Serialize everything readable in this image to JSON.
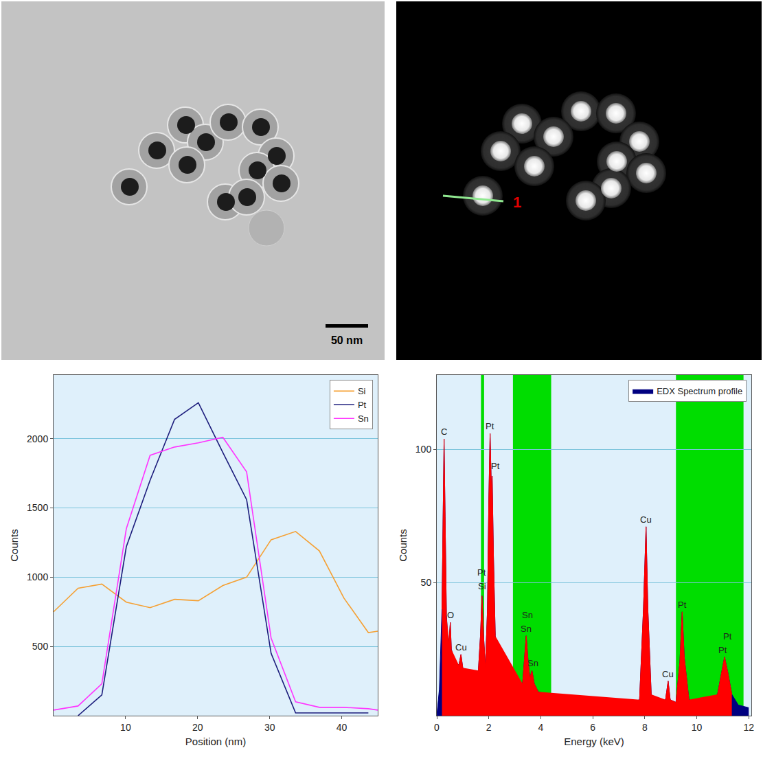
{
  "panels": [
    {
      "scale_bar": "50 nm"
    },
    {
      "line_label": "1"
    }
  ],
  "chart_data": [
    {
      "type": "line",
      "x_label": "Position (nm)",
      "y_label": "Counts",
      "x": [
        0,
        3.4,
        6.7,
        10.1,
        13.4,
        16.8,
        20.1,
        23.5,
        26.8,
        30.2,
        33.6,
        36.9,
        40.3,
        43.7,
        45
      ],
      "series": [
        {
          "name": "Si",
          "color": "#f5a033",
          "values": [
            750,
            920,
            950,
            820,
            780,
            840,
            830,
            940,
            1000,
            1270,
            1330,
            1190,
            850,
            600,
            610
          ]
        },
        {
          "name": "Pt",
          "color": "#1c1c7c",
          "values": [
            null,
            0,
            150,
            1220,
            1700,
            2140,
            2260,
            1900,
            1560,
            450,
            20,
            20,
            20,
            20,
            null
          ]
        },
        {
          "name": "Sn",
          "color": "#ff33ff",
          "values": [
            40,
            70,
            230,
            1350,
            1880,
            1940,
            1970,
            2010,
            1760,
            560,
            100,
            60,
            60,
            50,
            40
          ]
        }
      ],
      "xlim": [
        0,
        45
      ],
      "xticks": [
        10,
        20,
        30,
        40
      ],
      "ylim": [
        0,
        2460
      ],
      "yticks": [
        500,
        1000,
        1500,
        2000
      ],
      "grid": true,
      "legend": "upper right"
    },
    {
      "type": "area",
      "x_label": "Energy (keV)",
      "y_label": "Counts",
      "x": [
        0.0,
        0.1,
        0.2,
        0.25,
        0.28,
        0.32,
        0.37,
        0.42,
        0.47,
        0.52,
        0.56,
        0.65,
        0.75,
        0.85,
        0.93,
        1.0,
        1.1,
        1.2,
        1.3,
        1.4,
        1.5,
        1.6,
        1.68,
        1.74,
        1.8,
        1.87,
        1.95,
        2.0,
        2.05,
        2.1,
        2.13,
        2.18,
        2.25,
        2.35,
        2.5,
        2.7,
        2.9,
        3.1,
        3.3,
        3.4,
        3.44,
        3.5,
        3.58,
        3.66,
        3.75,
        3.9,
        4.2,
        4.5,
        5.0,
        5.5,
        6.0,
        6.5,
        7.0,
        7.5,
        7.8,
        7.95,
        8.05,
        8.12,
        8.25,
        8.5,
        8.8,
        8.9,
        8.98,
        9.2,
        9.35,
        9.44,
        9.52,
        9.7,
        10.0,
        10.4,
        10.8,
        10.95,
        11.07,
        11.2,
        11.35,
        11.6,
        12.0
      ],
      "series": [
        {
          "name": "EDX Spectrum profile",
          "color": "#000080",
          "values": [
            0,
            10,
            40,
            80,
            104,
            75,
            38,
            30,
            28,
            35,
            25,
            22,
            20,
            19,
            23,
            18,
            17,
            16,
            15,
            15,
            15,
            17,
            30,
            45,
            30,
            18,
            40,
            80,
            106,
            85,
            90,
            60,
            30,
            18,
            14,
            12,
            11,
            10,
            12,
            25,
            30,
            22,
            14,
            17,
            12,
            9,
            8,
            7,
            6,
            6,
            5,
            5,
            5,
            5,
            6,
            40,
            71,
            40,
            8,
            5,
            6,
            13,
            6,
            5,
            20,
            39,
            22,
            6,
            5,
            5,
            8,
            16,
            22,
            16,
            8,
            4,
            3
          ]
        },
        {
          "color": "#ff0000",
          "values": [
            null,
            null,
            40,
            80,
            104,
            75,
            38,
            null,
            28,
            35,
            25,
            null,
            null,
            19,
            23,
            18,
            null,
            null,
            null,
            null,
            null,
            17,
            30,
            45,
            30,
            18,
            40,
            80,
            106,
            85,
            90,
            60,
            30,
            null,
            null,
            null,
            null,
            null,
            12,
            25,
            30,
            22,
            14,
            17,
            12,
            9,
            null,
            null,
            null,
            null,
            null,
            null,
            null,
            null,
            6,
            40,
            71,
            40,
            8,
            null,
            6,
            13,
            6,
            5,
            20,
            39,
            22,
            6,
            null,
            null,
            8,
            16,
            22,
            16,
            8,
            null,
            null
          ]
        }
      ],
      "regions": [
        {
          "x0": 1.7,
          "x1": 1.82
        },
        {
          "x0": 2.93,
          "x1": 4.4
        },
        {
          "x0": 9.2,
          "x1": 11.8
        }
      ],
      "annotations": [
        {
          "text": "C",
          "x": 0.28,
          "y": 104
        },
        {
          "text": "O",
          "x": 0.52,
          "y": 35
        },
        {
          "text": "Cu",
          "x": 0.93,
          "y": 23
        },
        {
          "text": "Si",
          "x": 1.74,
          "y": 46
        },
        {
          "text": "Pt",
          "x": 1.74,
          "y": 51
        },
        {
          "text": "Pt",
          "x": 2.05,
          "y": 106
        },
        {
          "text": "Pt",
          "x": 2.27,
          "y": 91
        },
        {
          "text": "Sn",
          "x": 3.44,
          "y": 30
        },
        {
          "text": "Sn",
          "x": 3.5,
          "y": 35
        },
        {
          "text": "Sn",
          "x": 3.7,
          "y": 17
        },
        {
          "text": "Cu",
          "x": 8.05,
          "y": 71
        },
        {
          "text": "Cu",
          "x": 8.9,
          "y": 13
        },
        {
          "text": "Pt",
          "x": 9.44,
          "y": 39
        },
        {
          "text": "Pt",
          "x": 11.0,
          "y": 22
        },
        {
          "text": "Pt",
          "x": 11.2,
          "y": 27
        }
      ],
      "xlim": [
        0,
        12.1
      ],
      "xticks": [
        0,
        2,
        4,
        6,
        8,
        10,
        12
      ],
      "ylim": [
        0,
        128
      ],
      "yticks": [
        50,
        100
      ],
      "grid": true,
      "legend": "upper right"
    }
  ]
}
